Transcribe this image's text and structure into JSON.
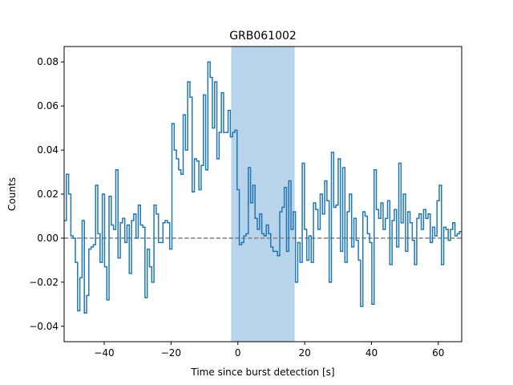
{
  "chart_data": {
    "type": "line",
    "step": true,
    "title": "GRB061002",
    "xlabel": "Time since burst detection [s]",
    "ylabel": "Counts",
    "xlim": [
      -52,
      67
    ],
    "ylim": [
      -0.047,
      0.087
    ],
    "xticks": [
      -40,
      -20,
      0,
      20,
      40,
      60
    ],
    "yticks": [
      -0.04,
      -0.02,
      0.0,
      0.02,
      0.04,
      0.06,
      0.08
    ],
    "xtick_labels": [
      "−40",
      "−20",
      "0",
      "20",
      "40",
      "60"
    ],
    "ytick_labels": [
      "−0.04",
      "−0.02",
      "0.00",
      "0.02",
      "0.04",
      "0.06",
      "0.08"
    ],
    "bin_width": 1,
    "bin_start": -52,
    "series": [
      {
        "color": "#1f77b4",
        "values": [
          0.008,
          0.029,
          0.02,
          0.001,
          0.0,
          -0.011,
          -0.033,
          -0.018,
          0.008,
          -0.034,
          -0.026,
          -0.005,
          -0.004,
          -0.003,
          0.024,
          0.002,
          -0.011,
          0.02,
          -0.013,
          -0.028,
          0.019,
          0.006,
          0.004,
          0.031,
          -0.009,
          0.007,
          0.009,
          -0.002,
          0.006,
          -0.016,
          0.008,
          0.011,
          0.0,
          0.015,
          0.006,
          0.005,
          -0.027,
          -0.005,
          -0.013,
          -0.02,
          0.015,
          0.011,
          -0.002,
          -0.002,
          0.007,
          0.008,
          0.007,
          -0.005,
          0.052,
          0.04,
          0.036,
          0.031,
          0.029,
          0.056,
          0.04,
          0.071,
          0.064,
          0.021,
          0.036,
          0.035,
          0.022,
          0.033,
          0.065,
          0.031,
          0.08,
          0.073,
          0.05,
          0.071,
          0.036,
          0.048,
          0.066,
          0.048,
          0.048,
          0.058,
          0.046,
          0.048,
          0.049,
          0.022,
          -0.003,
          -0.002,
          0.001,
          0.002,
          0.032,
          0.016,
          0.024,
          0.009,
          0.004,
          0.011,
          0.002,
          0.001,
          0.006,
          0.002,
          -0.004,
          -0.006,
          -0.006,
          -0.008,
          0.012,
          0.014,
          0.023,
          -0.006,
          0.026,
          0.004,
          0.012,
          -0.02,
          -0.002,
          -0.011,
          0.034,
          0.004,
          -0.01,
          0.001,
          -0.011,
          0.016,
          0.013,
          0.004,
          0.02,
          0.011,
          0.026,
          0.017,
          -0.02,
          0.039,
          0.014,
          0.015,
          0.036,
          -0.006,
          0.032,
          -0.011,
          0.012,
          0.02,
          -0.004,
          0.009,
          -0.001,
          -0.01,
          -0.031,
          0.012,
          0.01,
          0.002,
          -0.002,
          -0.03,
          0.031,
          0.013,
          0.009,
          0.016,
          0.004,
          0.009,
          0.017,
          -0.012,
          0.008,
          0.013,
          -0.004,
          0.034,
          0.007,
          0.02,
          -0.006,
          0.012,
          0.007,
          -0.001,
          -0.012,
          0.009,
          0.011,
          0.004,
          0.013,
          0.009,
          0.011,
          -0.002,
          0.005,
          0.001,
          0.017,
          0.024,
          -0.012,
          0.005,
          0.004,
          -0.001,
          0.004,
          0.007,
          0.001,
          0.002,
          0.003
        ]
      }
    ],
    "baseline": {
      "y": 0.0,
      "color": "#808080",
      "style": "dashed"
    },
    "shaded_region": {
      "x0": -2,
      "x1": 17,
      "color": "#b9d4ea"
    },
    "grid": false,
    "legend": "none"
  }
}
